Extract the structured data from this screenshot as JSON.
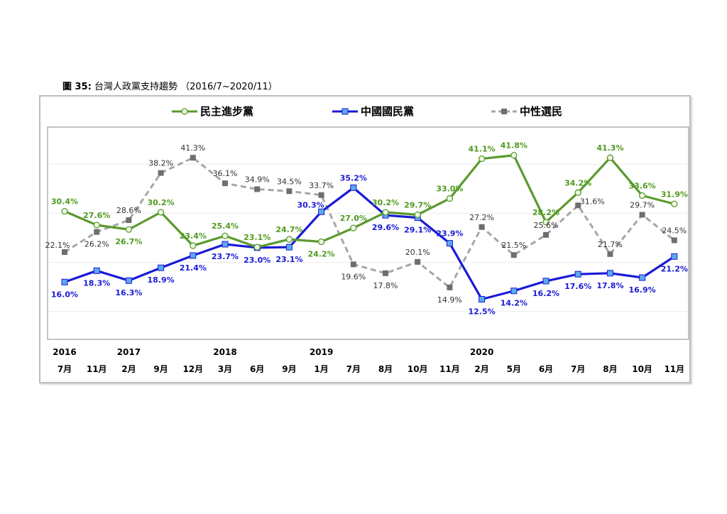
{
  "caption": {
    "prefix": "圖 35:",
    "title": "台灣人政黨支持趨勢",
    "range": "（2016/7~2020/11）"
  },
  "colors": {
    "dpp": "#5a9a2e",
    "kmt": "#1a1ad6",
    "neutral": "#a6a6a6"
  },
  "chart_data": {
    "type": "line",
    "title": "台灣人政黨支持趨勢",
    "legend_position": "top",
    "years": [
      {
        "label": "2016",
        "index": 0
      },
      {
        "label": "2017",
        "index": 2
      },
      {
        "label": "2018",
        "index": 5
      },
      {
        "label": "2019",
        "index": 8
      },
      {
        "label": "2020",
        "index": 13
      }
    ],
    "categories": [
      "7月",
      "11月",
      "2月",
      "9月",
      "12月",
      "3月",
      "6月",
      "9月",
      "1月",
      "7月",
      "8月",
      "10月",
      "11月",
      "2月",
      "5月",
      "6月",
      "7月",
      "8月",
      "10月",
      "11月"
    ],
    "ylim": [
      0,
      45
    ],
    "series": [
      {
        "name": "民主進步黨",
        "color": "#5a9a2e",
        "marker": "circle",
        "values": [
          30.4,
          27.6,
          26.7,
          30.2,
          23.4,
          25.4,
          23.1,
          24.7,
          24.2,
          27.0,
          30.2,
          29.7,
          33.0,
          41.1,
          41.8,
          28.2,
          34.2,
          41.3,
          33.6,
          31.9
        ],
        "labels": [
          "30.4%",
          "27.6%",
          "26.7%",
          "30.2%",
          "23.4%",
          "25.4%",
          "23.1%",
          "24.7%",
          "24.2%",
          "27.0%",
          "30.2%",
          "29.7%",
          "33.0%",
          "41.1%",
          "41.8%",
          "28.2%",
          "34.2%",
          "41.3%",
          "33.6%",
          "31.9%"
        ]
      },
      {
        "name": "中國國民黨",
        "color": "#1a1ad6",
        "marker": "square",
        "values": [
          16.0,
          18.3,
          16.3,
          18.9,
          21.4,
          23.7,
          23.0,
          23.1,
          30.3,
          35.2,
          29.6,
          29.1,
          23.9,
          12.5,
          14.2,
          16.2,
          17.6,
          17.8,
          16.9,
          21.2
        ],
        "labels": [
          "16.0%",
          "18.3%",
          "16.3%",
          "18.9%",
          "21.4%",
          "23.7%",
          "23.0%",
          "23.1%",
          "30.3%",
          "35.2%",
          "29.6%",
          "29.1%",
          "23.9%",
          "12.5%",
          "14.2%",
          "16.2%",
          "17.6%",
          "17.8%",
          "16.9%",
          "21.2%"
        ]
      },
      {
        "name": "中性選民",
        "color": "#a6a6a6",
        "marker": "square-x",
        "values": [
          22.1,
          26.2,
          28.6,
          38.2,
          41.3,
          36.1,
          34.9,
          34.5,
          33.7,
          19.6,
          17.8,
          20.1,
          14.9,
          27.2,
          21.5,
          25.6,
          31.6,
          21.7,
          29.7,
          24.5
        ],
        "labels": [
          "22.1%",
          "26.2%",
          "28.6%",
          "38.2%",
          "41.3%",
          "36.1%",
          "34.9%",
          "34.5%",
          "33.7%",
          "19.6%",
          "17.8%",
          "20.1%",
          "14.9%",
          "27.2%",
          "21.5%",
          "25.6%",
          "31.6%",
          "21.7%",
          "29.7%",
          "24.5%"
        ]
      }
    ]
  }
}
